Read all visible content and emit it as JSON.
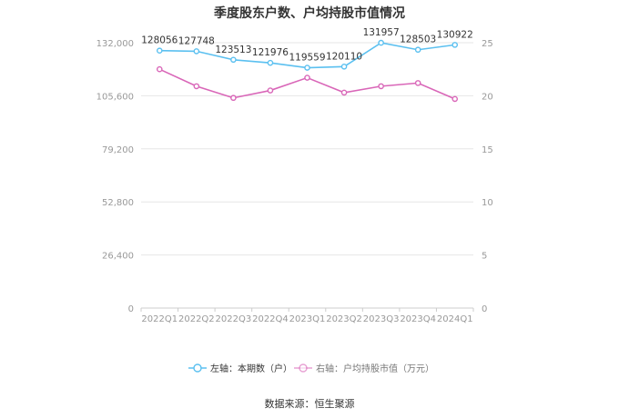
{
  "title": "季度股东户数、户均持股市值情况",
  "source": "数据来源：恒生聚源",
  "colors": {
    "left_series": "#5bc0f0",
    "right_series": "#d966b8",
    "grid": "#e6e6e6",
    "axis_text": "#999999"
  },
  "chart_data": {
    "type": "line",
    "title": "季度股东户数、户均持股市值情况",
    "categories": [
      "2022Q1",
      "2022Q2",
      "2022Q3",
      "2022Q4",
      "2023Q1",
      "2023Q2",
      "2023Q3",
      "2023Q4",
      "2024Q1"
    ],
    "left_axis": {
      "min": 0,
      "max": 132000,
      "ticks": [
        "0",
        "26,400",
        "52,800",
        "79,200",
        "105,600",
        "132,000"
      ]
    },
    "right_axis": {
      "min": 0,
      "max": 25,
      "ticks": [
        "0",
        "5",
        "10",
        "15",
        "20",
        "25"
      ]
    },
    "series": [
      {
        "name": "左轴：本期数（户）",
        "axis": "left",
        "values": [
          128056,
          127748,
          123513,
          121976,
          119559,
          120110,
          131957,
          128503,
          130922
        ],
        "labels": [
          "128056",
          "127748",
          "123513",
          "121976",
          "119559",
          "120110",
          "131957",
          "128503",
          "130922"
        ]
      },
      {
        "name": "右轴：户均持股市值（万元）",
        "axis": "right",
        "values": [
          22.5,
          20.9,
          19.8,
          20.5,
          21.7,
          20.3,
          20.9,
          21.2,
          19.7
        ]
      }
    ],
    "grid": true,
    "legend_position": "bottom"
  }
}
